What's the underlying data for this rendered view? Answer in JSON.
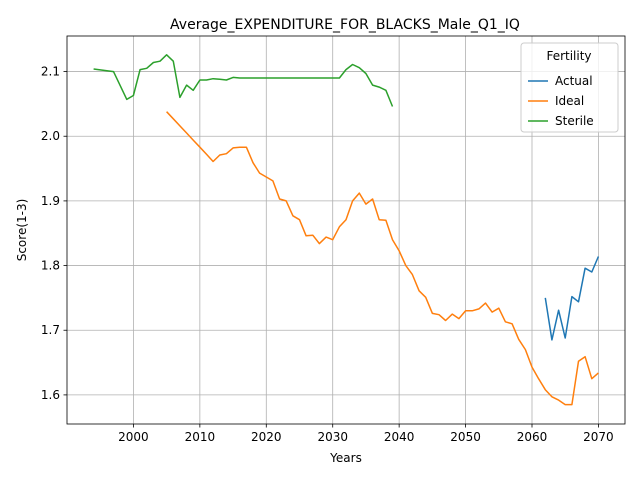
{
  "chart_data": {
    "type": "line",
    "title": "Average_EXPENDITURE_FOR_BLACKS_Male_Q1_IQ",
    "xlabel": "Years",
    "ylabel": "Score(1-3)",
    "xlim": [
      1990,
      2074
    ],
    "ylim": [
      1.555,
      2.155
    ],
    "xticks": [
      2000,
      2010,
      2020,
      2030,
      2040,
      2050,
      2060,
      2070
    ],
    "yticks": [
      1.6,
      1.7,
      1.8,
      1.9,
      2.0,
      2.1
    ],
    "ytick_labels": [
      "1.6",
      "1.7",
      "1.8",
      "1.9",
      "2.0",
      "2.1"
    ],
    "grid": true,
    "legend": {
      "title": "Fertility",
      "position": "top-right"
    },
    "series": [
      {
        "name": "Actual",
        "color": "#1f77b4",
        "x": [
          2062,
          2063,
          2064,
          2065,
          2066,
          2067,
          2068,
          2069,
          2070
        ],
        "y": [
          1.75,
          1.685,
          1.731,
          1.688,
          1.752,
          1.744,
          1.796,
          1.79,
          1.814
        ]
      },
      {
        "name": "Ideal",
        "color": "#ff7f0e",
        "x": [
          2005,
          2006,
          2007,
          2008,
          2009,
          2010,
          2011,
          2012,
          2013,
          2014,
          2015,
          2016,
          2017,
          2018,
          2019,
          2020,
          2021,
          2022,
          2023,
          2024,
          2025,
          2026,
          2027,
          2028,
          2029,
          2030,
          2031,
          2032,
          2033,
          2034,
          2035,
          2036,
          2037,
          2038,
          2039,
          2040,
          2041,
          2042,
          2043,
          2044,
          2045,
          2046,
          2047,
          2048,
          2049,
          2050,
          2051,
          2052,
          2053,
          2054,
          2055,
          2056,
          2057,
          2058,
          2059,
          2060,
          2061,
          2062,
          2063,
          2064,
          2065,
          2066,
          2067,
          2068,
          2069,
          2070
        ],
        "y": [
          2.038,
          2.027,
          2.016,
          2.005,
          1.994,
          1.983,
          1.972,
          1.961,
          1.971,
          1.973,
          1.982,
          1.983,
          1.983,
          1.959,
          1.943,
          1.937,
          1.931,
          1.903,
          1.9,
          1.877,
          1.871,
          1.846,
          1.847,
          1.834,
          1.844,
          1.84,
          1.86,
          1.871,
          1.9,
          1.912,
          1.895,
          1.903,
          1.871,
          1.87,
          1.84,
          1.823,
          1.8,
          1.786,
          1.761,
          1.751,
          1.726,
          1.724,
          1.715,
          1.725,
          1.718,
          1.73,
          1.73,
          1.733,
          1.742,
          1.728,
          1.734,
          1.713,
          1.71,
          1.686,
          1.67,
          1.643,
          1.625,
          1.608,
          1.597,
          1.592,
          1.585,
          1.585,
          1.652,
          1.659,
          1.625,
          1.634
        ]
      },
      {
        "name": "Sterile",
        "color": "#2ca02c",
        "x": [
          1994,
          1997,
          1999,
          2000,
          2001,
          2002,
          2003,
          2004,
          2005,
          2006,
          2007,
          2008,
          2009,
          2010,
          2011,
          2012,
          2013,
          2014,
          2015,
          2016,
          2031,
          2032,
          2033,
          2034,
          2035,
          2036,
          2037,
          2038,
          2039
        ],
        "y": [
          2.104,
          2.1,
          2.057,
          2.063,
          2.103,
          2.105,
          2.114,
          2.116,
          2.126,
          2.116,
          2.06,
          2.079,
          2.071,
          2.087,
          2.087,
          2.089,
          2.088,
          2.087,
          2.091,
          2.09,
          2.09,
          2.103,
          2.111,
          2.106,
          2.097,
          2.079,
          2.076,
          2.071,
          2.046
        ]
      }
    ]
  }
}
